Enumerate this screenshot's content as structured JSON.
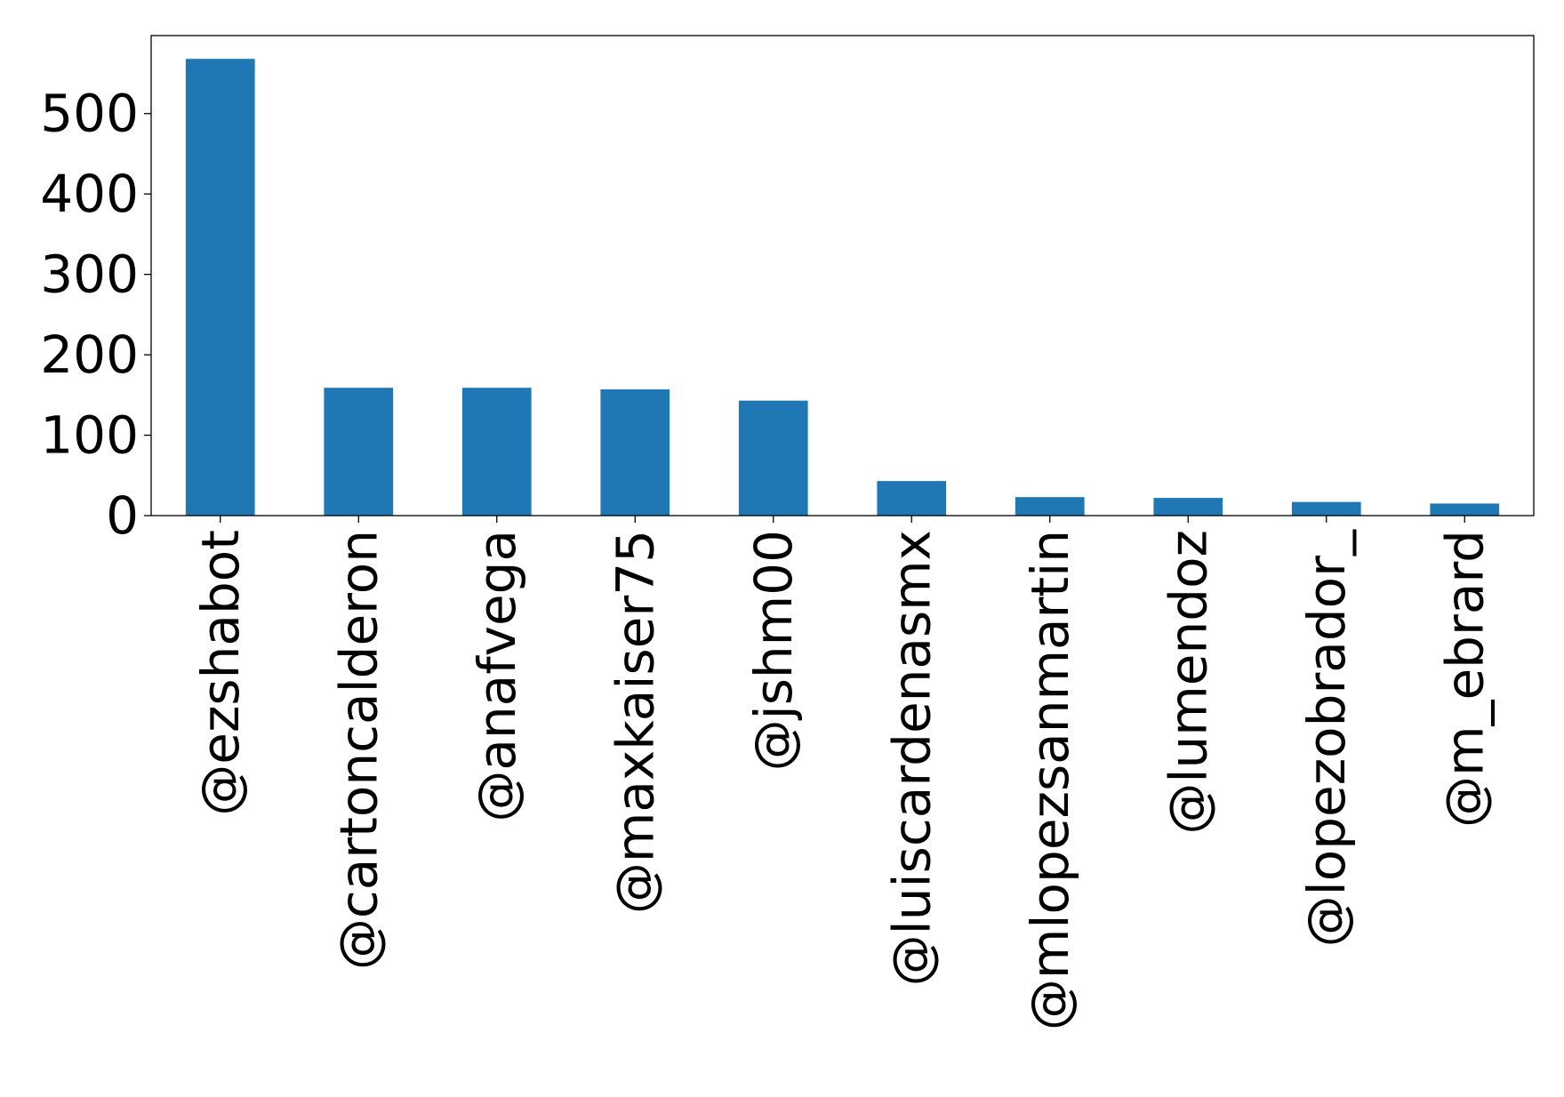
{
  "chart_data": {
    "type": "bar",
    "title": "",
    "xlabel": "",
    "ylabel": "",
    "categories": [
      "@ezshabot",
      "@cartoncalderon",
      "@anafvega",
      "@maxkaiser75",
      "@jshm00",
      "@luiscardenasmx",
      "@mlopezsanmartin",
      "@lumendoz",
      "@lopezobrador_",
      "@m_ebrard"
    ],
    "values": [
      568,
      159,
      159,
      157,
      143,
      43,
      23,
      22,
      17,
      15
    ],
    "ylim": [
      0,
      597
    ],
    "yticks": [
      0,
      100,
      200,
      300,
      400,
      500
    ],
    "grid": false,
    "legend": "none",
    "bar_color": "#1f77b4",
    "axis_color": "#000000"
  }
}
